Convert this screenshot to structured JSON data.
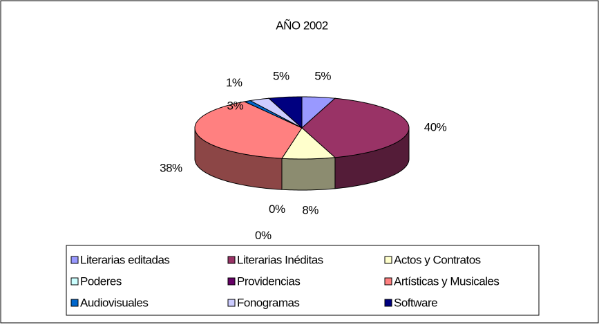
{
  "chart_data": {
    "type": "pie",
    "title": "AÑO 2002",
    "categories": [
      "Literarias editadas",
      "Literarias Inéditas",
      "Actos y Contratos",
      "Poderes",
      "Providencias",
      "Artísticas y Musicales",
      "Audiovisuales",
      "Fonogramas",
      "Software"
    ],
    "values": [
      5,
      40,
      8,
      0,
      0,
      38,
      1,
      3,
      5
    ],
    "value_labels": [
      "5%",
      "40%",
      "8%",
      "0%",
      "0%",
      "38%",
      "1%",
      "3%",
      "5%"
    ],
    "colors": [
      "#9999FF",
      "#993366",
      "#FFFFCC",
      "#CCFFFF",
      "#660066",
      "#FF8080",
      "#0066CC",
      "#CCCCFF",
      "#000080"
    ],
    "legend": "bottom"
  }
}
